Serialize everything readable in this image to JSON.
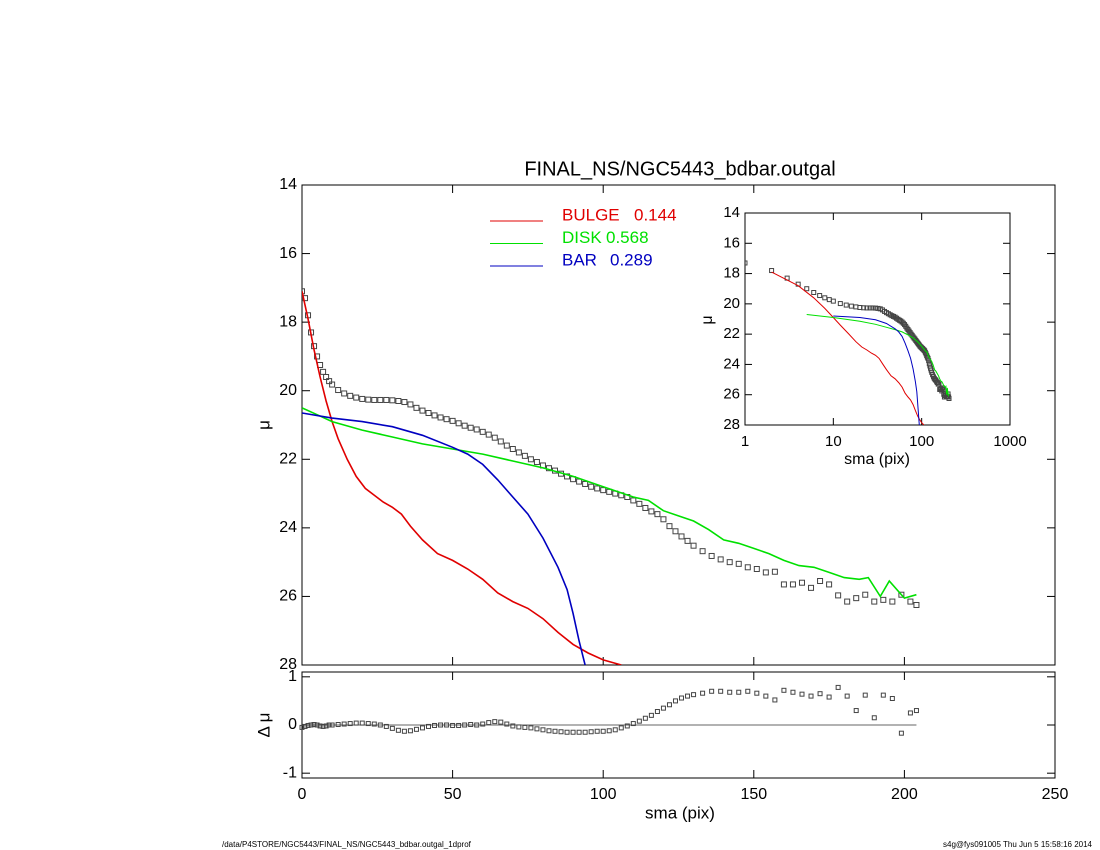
{
  "chart_data": [
    {
      "type": "line",
      "title": "FINAL_NS/NGC5443_bdbar.outgal",
      "ylabel": "μ",
      "xlim": [
        0,
        250
      ],
      "xticks": [
        0,
        50,
        100,
        150,
        200,
        250
      ],
      "ylim": [
        28,
        14
      ],
      "yticks": [
        14,
        16,
        18,
        20,
        22,
        24,
        26,
        28
      ],
      "marker_color": "#444444",
      "x": [
        0,
        1,
        2,
        3,
        4,
        5,
        6,
        7,
        8,
        9,
        10,
        12,
        14,
        16,
        18,
        20,
        22,
        24,
        26,
        28,
        30,
        32,
        34,
        36,
        38,
        40,
        42,
        44,
        46,
        48,
        50,
        52,
        54,
        56,
        58,
        60,
        62,
        64,
        66,
        68,
        70,
        72,
        74,
        76,
        78,
        80,
        82,
        84,
        86,
        88,
        90,
        92,
        94,
        96,
        98,
        100,
        102,
        104,
        106,
        108,
        110,
        112,
        114,
        116,
        118,
        120,
        122,
        124,
        126,
        128,
        130,
        133,
        136,
        139,
        142,
        145,
        148,
        151,
        154,
        157,
        160,
        163,
        166,
        169,
        172,
        175,
        178,
        181,
        184,
        187,
        190,
        193,
        196,
        199,
        202,
        204
      ],
      "values": [
        17.1,
        17.3,
        17.8,
        18.3,
        18.7,
        19.0,
        19.25,
        19.45,
        19.6,
        19.72,
        19.82,
        19.98,
        20.08,
        20.15,
        20.2,
        20.24,
        20.26,
        20.27,
        20.27,
        20.27,
        20.28,
        20.3,
        20.33,
        20.4,
        20.5,
        20.58,
        20.65,
        20.72,
        20.78,
        20.83,
        20.88,
        20.95,
        21.02,
        21.08,
        21.13,
        21.2,
        21.28,
        21.37,
        21.48,
        21.6,
        21.7,
        21.8,
        21.9,
        22.0,
        22.08,
        22.18,
        22.26,
        22.33,
        22.42,
        22.5,
        22.58,
        22.65,
        22.72,
        22.8,
        22.85,
        22.9,
        22.95,
        23.0,
        23.05,
        23.1,
        23.2,
        23.3,
        23.42,
        23.52,
        23.6,
        23.75,
        23.95,
        24.1,
        24.25,
        24.38,
        24.52,
        24.68,
        24.82,
        24.92,
        25.0,
        25.05,
        25.15,
        25.2,
        25.3,
        25.28,
        25.65,
        25.65,
        25.6,
        25.75,
        25.55,
        25.65,
        25.97,
        26.15,
        26.05,
        25.95,
        26.15,
        26.1,
        26.15,
        25.95,
        26.15,
        26.25
      ],
      "series": [
        {
          "name": "BULGE",
          "fraction": 0.144,
          "color": "#e00000",
          "x": [
            0,
            2,
            4,
            6,
            8,
            10,
            12,
            15,
            18,
            21,
            24,
            27,
            30,
            33,
            36,
            40,
            45,
            50,
            55,
            60,
            65,
            70,
            75,
            80,
            85,
            90,
            95,
            100,
            106
          ],
          "values": [
            17.1,
            17.9,
            18.8,
            19.6,
            20.3,
            20.9,
            21.4,
            22.0,
            22.5,
            22.85,
            23.05,
            23.25,
            23.4,
            23.6,
            23.95,
            24.35,
            24.75,
            24.95,
            25.2,
            25.5,
            25.9,
            26.15,
            26.35,
            26.65,
            27.05,
            27.4,
            27.65,
            27.85,
            28.0
          ]
        },
        {
          "name": "DISK",
          "fraction": 0.568,
          "color": "#00e000",
          "x": [
            0,
            5,
            10,
            20,
            30,
            40,
            50,
            60,
            70,
            80,
            90,
            100,
            110,
            115,
            120,
            125,
            130,
            135,
            140,
            145,
            150,
            155,
            160,
            165,
            170,
            175,
            180,
            185,
            188,
            192,
            195,
            200,
            204
          ],
          "values": [
            20.5,
            20.7,
            20.9,
            21.15,
            21.35,
            21.55,
            21.7,
            21.85,
            22.05,
            22.25,
            22.5,
            22.8,
            23.1,
            23.2,
            23.5,
            23.65,
            23.8,
            24.05,
            24.35,
            24.45,
            24.6,
            24.75,
            24.95,
            25.1,
            25.15,
            25.3,
            25.45,
            25.5,
            25.45,
            26.0,
            25.55,
            26.05,
            25.95
          ]
        },
        {
          "name": "BAR",
          "fraction": 0.289,
          "color": "#0000c0",
          "x": [
            0,
            10,
            20,
            30,
            40,
            50,
            55,
            60,
            65,
            70,
            75,
            80,
            85,
            88,
            90,
            92,
            94
          ],
          "values": [
            20.65,
            20.8,
            20.9,
            21.05,
            21.3,
            21.65,
            21.85,
            22.15,
            22.6,
            23.1,
            23.6,
            24.3,
            25.15,
            25.8,
            26.5,
            27.3,
            28.0
          ]
        }
      ]
    },
    {
      "type": "scatter",
      "xlabel": "sma (pix)",
      "ylabel": "Δ μ",
      "xlim": [
        0,
        250
      ],
      "xticks": [
        0,
        50,
        100,
        150,
        200,
        250
      ],
      "ylim": [
        -1.1,
        1.1
      ],
      "yticks": [
        -1,
        0,
        1
      ],
      "marker_color": "#444444",
      "x": [
        0,
        1,
        2,
        3,
        4,
        5,
        6,
        7,
        8,
        9,
        10,
        12,
        14,
        16,
        18,
        20,
        22,
        24,
        26,
        28,
        30,
        32,
        34,
        36,
        38,
        40,
        42,
        44,
        46,
        48,
        50,
        52,
        54,
        56,
        58,
        60,
        62,
        64,
        66,
        68,
        70,
        72,
        74,
        76,
        78,
        80,
        82,
        84,
        86,
        88,
        90,
        92,
        94,
        96,
        98,
        100,
        102,
        104,
        106,
        108,
        110,
        112,
        114,
        116,
        118,
        120,
        122,
        124,
        126,
        128,
        130,
        133,
        136,
        139,
        142,
        145,
        148,
        151,
        154,
        157,
        160,
        163,
        166,
        169,
        172,
        175,
        178,
        181,
        184,
        187,
        190,
        193,
        196,
        199,
        202,
        204
      ],
      "values": [
        -0.05,
        -0.03,
        -0.01,
        0.0,
        0.01,
        0.0,
        -0.02,
        -0.03,
        -0.02,
        0.0,
        0.0,
        0.01,
        0.02,
        0.03,
        0.04,
        0.04,
        0.03,
        0.02,
        0.0,
        -0.03,
        -0.07,
        -0.11,
        -0.13,
        -0.12,
        -0.09,
        -0.06,
        -0.03,
        -0.01,
        0.0,
        0.0,
        -0.01,
        -0.01,
        0.0,
        0.01,
        0.0,
        0.02,
        0.05,
        0.07,
        0.06,
        0.02,
        -0.02,
        -0.04,
        -0.05,
        -0.06,
        -0.08,
        -0.1,
        -0.12,
        -0.13,
        -0.14,
        -0.15,
        -0.15,
        -0.15,
        -0.15,
        -0.14,
        -0.13,
        -0.13,
        -0.12,
        -0.1,
        -0.06,
        -0.02,
        0.03,
        0.08,
        0.14,
        0.2,
        0.28,
        0.35,
        0.42,
        0.5,
        0.56,
        0.6,
        0.63,
        0.66,
        0.7,
        0.7,
        0.68,
        0.68,
        0.7,
        0.66,
        0.6,
        0.52,
        0.72,
        0.68,
        0.64,
        0.6,
        0.65,
        0.58,
        0.78,
        0.6,
        0.3,
        0.62,
        0.15,
        0.62,
        0.55,
        -0.17,
        0.25,
        0.3
      ]
    },
    {
      "type": "inset",
      "xlabel": "sma (pix)",
      "ylabel": "μ",
      "log_x": true,
      "xlim": [
        1,
        1000
      ],
      "xticks": [
        1,
        10,
        100,
        1000
      ],
      "ylim": [
        28,
        14
      ],
      "yticks": [
        14,
        16,
        18,
        20,
        22,
        24,
        26,
        28
      ]
    }
  ],
  "footer": {
    "left": "/data/P4STORE/NGC5443/FINAL_NS/NGC5443_bdbar.outgal_1dprof",
    "right": "s4g@fys091005  Thu Jun  5 15:58:16 2014"
  }
}
